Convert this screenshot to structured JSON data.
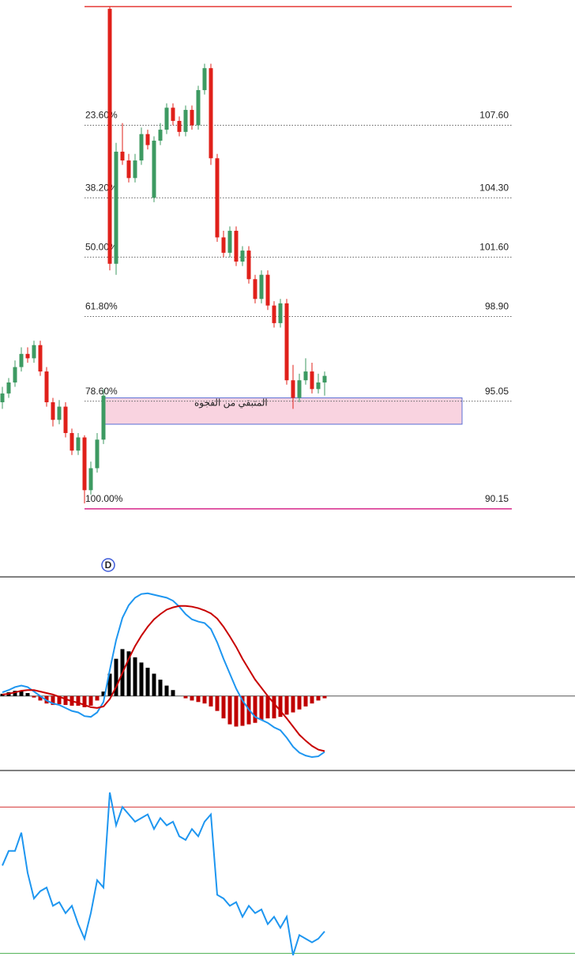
{
  "chart_data": [
    {
      "type": "candlestick",
      "ylim": [
        89.5,
        113.3
      ],
      "up_color": "#3d9a62",
      "down_color": "#e0201a",
      "candles": [
        [
          95.0,
          95.7,
          94.7,
          95.4
        ],
        [
          95.4,
          96.1,
          95.2,
          95.9
        ],
        [
          95.9,
          96.9,
          95.7,
          96.6
        ],
        [
          96.6,
          97.5,
          96.4,
          97.2
        ],
        [
          97.2,
          97.5,
          96.8,
          97.0
        ],
        [
          97.0,
          97.8,
          96.8,
          97.6
        ],
        [
          97.6,
          97.8,
          96.2,
          96.4
        ],
        [
          96.4,
          96.6,
          94.8,
          95.0
        ],
        [
          95.0,
          95.2,
          93.9,
          94.2
        ],
        [
          94.2,
          95.1,
          94.0,
          94.8
        ],
        [
          94.8,
          95.0,
          93.4,
          93.6
        ],
        [
          93.6,
          93.8,
          92.6,
          92.8
        ],
        [
          92.8,
          93.6,
          92.6,
          93.4
        ],
        [
          93.4,
          93.5,
          90.4,
          91.0
        ],
        [
          91.0,
          92.3,
          90.8,
          92.0
        ],
        [
          92.0,
          93.6,
          91.8,
          93.3
        ],
        [
          93.3,
          95.6,
          93.1,
          95.3
        ],
        [
          112.9,
          113.0,
          101.0,
          101.3
        ],
        [
          101.3,
          106.8,
          100.8,
          106.4
        ],
        [
          106.4,
          107.7,
          105.8,
          106.0
        ],
        [
          106.0,
          106.3,
          105.0,
          105.2
        ],
        [
          105.2,
          106.3,
          105.0,
          106.0
        ],
        [
          106.0,
          107.5,
          105.8,
          107.2
        ],
        [
          107.2,
          107.4,
          106.5,
          106.7
        ],
        [
          104.3,
          107.1,
          104.1,
          106.9
        ],
        [
          106.9,
          107.7,
          106.7,
          107.4
        ],
        [
          107.4,
          108.6,
          107.2,
          108.4
        ],
        [
          108.4,
          108.6,
          107.6,
          107.8
        ],
        [
          107.8,
          108.0,
          107.1,
          107.3
        ],
        [
          107.3,
          108.5,
          107.1,
          108.3
        ],
        [
          108.3,
          108.5,
          107.4,
          107.6
        ],
        [
          107.6,
          109.4,
          107.4,
          109.2
        ],
        [
          109.2,
          110.4,
          109.0,
          110.2
        ],
        [
          110.2,
          110.4,
          105.8,
          106.1
        ],
        [
          106.1,
          106.3,
          102.3,
          102.5
        ],
        [
          102.5,
          102.8,
          101.6,
          101.8
        ],
        [
          101.8,
          103.0,
          101.6,
          102.8
        ],
        [
          102.8,
          103.0,
          101.2,
          101.4
        ],
        [
          101.4,
          102.1,
          101.2,
          101.9
        ],
        [
          101.9,
          102.1,
          100.4,
          100.6
        ],
        [
          100.6,
          100.8,
          99.5,
          99.7
        ],
        [
          99.7,
          101.0,
          99.5,
          100.8
        ],
        [
          100.8,
          101.0,
          99.2,
          99.4
        ],
        [
          99.4,
          99.6,
          98.4,
          98.6
        ],
        [
          98.6,
          99.7,
          98.4,
          99.5
        ],
        [
          99.5,
          99.7,
          95.8,
          96.0
        ],
        [
          96.0,
          96.7,
          94.7,
          95.2
        ],
        [
          95.2,
          96.3,
          95.0,
          96.0
        ],
        [
          96.0,
          97.0,
          95.8,
          96.4
        ],
        [
          96.4,
          96.8,
          95.4,
          95.6
        ],
        [
          95.6,
          96.3,
          95.4,
          95.9
        ],
        [
          95.9,
          96.4,
          95.3,
          96.2
        ]
      ],
      "high_line": {
        "value": 113.0,
        "color": "#e53935"
      },
      "fib_levels": [
        {
          "ratio": "23.60%",
          "price": 107.6,
          "price_label": "107.60",
          "color": "#666"
        },
        {
          "ratio": "38.20%",
          "price": 104.3,
          "price_label": "104.30",
          "color": "#666"
        },
        {
          "ratio": "50.00%",
          "price": 101.6,
          "price_label": "101.60",
          "color": "#666"
        },
        {
          "ratio": "61.80%",
          "price": 98.9,
          "price_label": "98.90",
          "color": "#666"
        },
        {
          "ratio": "78.60%",
          "price": 95.05,
          "price_label": "95.05",
          "color": "#666"
        },
        {
          "ratio": "100.00%",
          "price": 90.15,
          "price_label": "90.15",
          "color": "#d6268a"
        }
      ],
      "gap_zone": {
        "label": "المتبقي من الفجوه",
        "top": 95.2,
        "bottom": 94.0,
        "fill": "#f9d3e0",
        "stroke": "#5b6fd6"
      },
      "marker": "D"
    },
    {
      "type": "macd",
      "ylim": [
        -1.0,
        1.6
      ],
      "series": [
        {
          "color": "#1e96f0",
          "values": [
            0.05,
            0.08,
            0.12,
            0.14,
            0.12,
            0.06,
            0.0,
            -0.06,
            -0.1,
            -0.12,
            -0.16,
            -0.2,
            -0.22,
            -0.27,
            -0.28,
            -0.22,
            -0.08,
            0.35,
            0.75,
            1.05,
            1.22,
            1.32,
            1.37,
            1.38,
            1.36,
            1.34,
            1.32,
            1.28,
            1.2,
            1.1,
            1.03,
            1.0,
            0.98,
            0.9,
            0.72,
            0.5,
            0.3,
            0.1,
            -0.06,
            -0.18,
            -0.28,
            -0.32,
            -0.36,
            -0.42,
            -0.46,
            -0.56,
            -0.68,
            -0.76,
            -0.8,
            -0.82,
            -0.81,
            -0.75
          ]
        },
        {
          "color": "#c80000",
          "values": [
            0.02,
            0.03,
            0.05,
            0.07,
            0.08,
            0.08,
            0.06,
            0.04,
            0.02,
            -0.01,
            -0.04,
            -0.07,
            -0.09,
            -0.12,
            -0.15,
            -0.16,
            -0.14,
            -0.04,
            0.12,
            0.31,
            0.5,
            0.67,
            0.81,
            0.93,
            1.03,
            1.1,
            1.16,
            1.19,
            1.21,
            1.21,
            1.2,
            1.18,
            1.15,
            1.11,
            1.04,
            0.93,
            0.8,
            0.66,
            0.5,
            0.36,
            0.22,
            0.11,
            0.0,
            -0.1,
            -0.2,
            -0.3,
            -0.41,
            -0.52,
            -0.6,
            -0.67,
            -0.72,
            -0.74
          ]
        }
      ],
      "histogram": [
        0.03,
        0.05,
        0.07,
        0.07,
        0.04,
        -0.02,
        -0.06,
        -0.1,
        -0.12,
        -0.11,
        -0.12,
        -0.13,
        -0.13,
        -0.15,
        -0.13,
        -0.06,
        0.06,
        0.3,
        0.5,
        0.63,
        0.6,
        0.52,
        0.45,
        0.38,
        0.3,
        0.22,
        0.14,
        0.08,
        0.0,
        -0.03,
        -0.06,
        -0.08,
        -0.1,
        -0.14,
        -0.2,
        -0.3,
        -0.38,
        -0.41,
        -0.4,
        -0.38,
        -0.36,
        -0.32,
        -0.3,
        -0.3,
        -0.28,
        -0.25,
        -0.22,
        -0.18,
        -0.14,
        -0.1,
        -0.06,
        -0.03
      ],
      "hist_up_color": "#000000",
      "hist_down_color": "#c00000"
    },
    {
      "type": "line",
      "ylim": [
        29,
        80
      ],
      "color": "#1e96f0",
      "values": [
        54,
        58,
        58,
        63,
        52,
        45,
        47,
        48,
        43,
        44,
        41,
        43,
        38,
        34,
        41,
        50,
        48,
        74,
        65,
        70,
        68,
        66,
        67,
        68,
        64,
        67,
        65,
        66,
        62,
        61,
        64,
        62,
        66,
        68,
        46,
        45,
        43,
        44,
        40,
        43,
        41,
        42,
        38,
        40,
        37,
        40,
        29.5,
        35,
        34,
        33,
        34,
        36
      ],
      "levels": [
        {
          "value": 70,
          "color": "#d32f2f"
        },
        {
          "value": 30,
          "color": "#4caf50"
        }
      ]
    }
  ]
}
